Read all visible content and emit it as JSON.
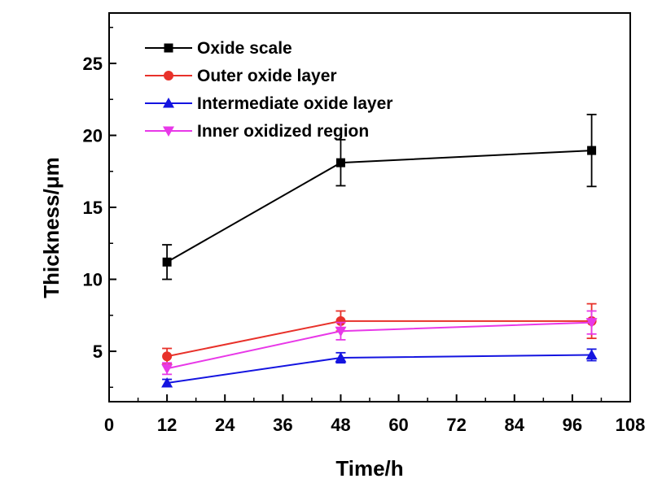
{
  "chart_data": {
    "type": "line",
    "xlabel": "Time/h",
    "ylabel": "Thickness/μm",
    "xlim": [
      0,
      108
    ],
    "ylim": [
      1.5,
      28.5
    ],
    "xticks": [
      0,
      12,
      24,
      36,
      48,
      60,
      72,
      84,
      96,
      108
    ],
    "yticks": [
      5,
      10,
      15,
      20,
      25
    ],
    "x": [
      12,
      48,
      100
    ],
    "grid": false,
    "legend_position": "top-left",
    "series": [
      {
        "name": "Oxide scale",
        "color": "#000000",
        "marker": "square",
        "values": [
          11.2,
          18.1,
          18.95
        ],
        "errors": [
          1.2,
          1.6,
          2.5
        ]
      },
      {
        "name": "Outer oxide layer",
        "color": "#e8312a",
        "marker": "circle",
        "values": [
          4.65,
          7.1,
          7.1
        ],
        "errors": [
          0.55,
          0.7,
          1.2
        ]
      },
      {
        "name": "Intermediate oxide layer",
        "color": "#1414e0",
        "marker": "triangle-up",
        "values": [
          2.8,
          4.55,
          4.75
        ],
        "errors": [
          0.25,
          0.35,
          0.4
        ]
      },
      {
        "name": "Inner oxidized region",
        "color": "#e838e8",
        "marker": "triangle-down",
        "values": [
          3.8,
          6.4,
          7.0
        ],
        "errors": [
          0.4,
          0.6,
          0.8
        ]
      }
    ]
  }
}
